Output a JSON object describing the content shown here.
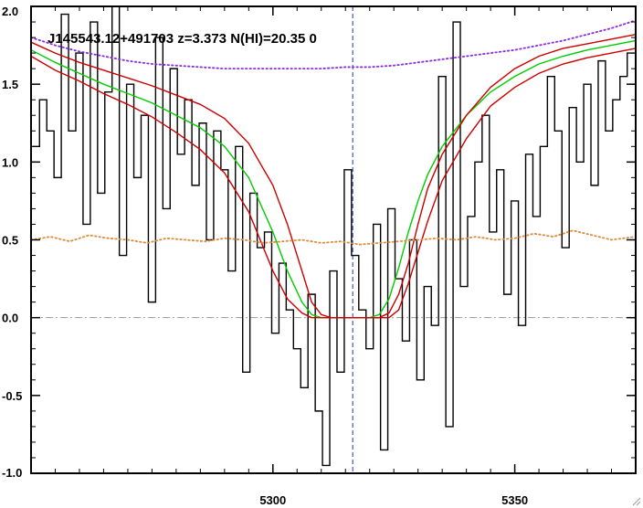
{
  "chart_data": {
    "type": "line",
    "title": "J145543.12+491703 z=3.373 N(HI)=20.35 0",
    "xlabel": "",
    "ylabel": "",
    "xlim": [
      5250,
      5375
    ],
    "ylim": [
      -1.0,
      2.0
    ],
    "x_ticks": [
      5300,
      5350
    ],
    "x_tick_labels": [
      "5300",
      "5350"
    ],
    "y_ticks": [
      -1.0,
      -0.5,
      0.0,
      0.5,
      1.0,
      1.5,
      2.0
    ],
    "y_tick_labels": [
      "-1.0",
      "-0.5",
      "0.0",
      "0.5",
      "1.0",
      "1.5",
      "2.0"
    ],
    "grid": false,
    "reference_line_y": 0.0,
    "marker_line_x": 5316.5,
    "colors": {
      "flux": "#000000",
      "model": "#00cc00",
      "model_bounds": "#cc0000",
      "continuum": "#8a2be2",
      "error": "#e08a3c",
      "zero_line": "#999999",
      "marker_line": "#2233cc"
    },
    "series": [
      {
        "style": "steps",
        "x": [
          5251.0,
          5252.5,
          5254.0,
          5255.5,
          5257.0,
          5258.5,
          5260.0,
          5261.5,
          5263.0,
          5264.5,
          5266.0,
          5267.5,
          5269.0,
          5270.5,
          5272.0,
          5273.5,
          5275.0,
          5276.5,
          5278.0,
          5279.5,
          5281.0,
          5282.5,
          5284.0,
          5285.5,
          5287.0,
          5288.5,
          5290.0,
          5291.5,
          5293.0,
          5294.5,
          5296.0,
          5297.5,
          5299.0,
          5300.5,
          5302.0,
          5303.5,
          5305.0,
          5306.5,
          5308.0,
          5309.5,
          5311.0,
          5312.5,
          5314.0,
          5315.5,
          5317.0,
          5318.5,
          5320.0,
          5321.5,
          5323.0,
          5324.5,
          5326.0,
          5327.5,
          5329.0,
          5330.5,
          5332.0,
          5333.5,
          5335.0,
          5336.5,
          5338.0,
          5339.5,
          5341.0,
          5342.5,
          5344.0,
          5345.5,
          5347.0,
          5348.5,
          5350.0,
          5351.5,
          5353.0,
          5354.5,
          5356.0,
          5357.5,
          5359.0,
          5360.5,
          5362.0,
          5363.5,
          5365.0,
          5366.5,
          5368.0,
          5369.5,
          5371.0,
          5372.5,
          5374.0
        ],
        "y": [
          1.1,
          1.4,
          1.2,
          0.9,
          1.95,
          1.2,
          1.7,
          0.6,
          1.9,
          0.8,
          1.45,
          2.0,
          0.4,
          1.5,
          0.9,
          1.3,
          0.1,
          1.8,
          0.7,
          1.6,
          1.05,
          1.4,
          0.85,
          1.25,
          0.5,
          1.2,
          0.95,
          0.3,
          1.1,
          -0.35,
          0.8,
          0.45,
          0.55,
          -0.1,
          0.35,
          0.05,
          -0.2,
          -0.45,
          0.15,
          -0.6,
          -0.95,
          0.3,
          -0.35,
          0.95,
          0.4,
          0.05,
          -0.2,
          0.6,
          -0.85,
          0.7,
          0.25,
          -0.15,
          0.5,
          -0.4,
          0.2,
          -0.05,
          1.55,
          -0.7,
          1.9,
          0.2,
          0.65,
          1.0,
          1.3,
          0.55,
          0.95,
          0.15,
          0.75,
          -0.05,
          1.05,
          0.65,
          1.1,
          1.55,
          1.2,
          0.45,
          1.35,
          1.0,
          1.5,
          0.85,
          1.65,
          1.2,
          1.4,
          1.55,
          1.7
        ]
      },
      {
        "style": "line",
        "x": [
          5250,
          5255,
          5260,
          5265,
          5270,
          5275,
          5280,
          5285,
          5290,
          5295,
          5300,
          5303,
          5306,
          5308,
          5310,
          5312,
          5314,
          5316,
          5318,
          5320,
          5322,
          5324,
          5326,
          5328,
          5330,
          5332,
          5335,
          5340,
          5345,
          5350,
          5355,
          5360,
          5365,
          5370,
          5375
        ],
        "y": [
          1.72,
          1.64,
          1.57,
          1.5,
          1.44,
          1.38,
          1.3,
          1.22,
          1.1,
          0.9,
          0.55,
          0.3,
          0.1,
          0.02,
          0.0,
          0.0,
          0.0,
          0.0,
          0.0,
          0.0,
          0.02,
          0.12,
          0.32,
          0.55,
          0.75,
          0.92,
          1.1,
          1.3,
          1.45,
          1.55,
          1.63,
          1.68,
          1.72,
          1.75,
          1.78
        ]
      },
      {
        "style": "line",
        "x": [
          5250,
          5255,
          5260,
          5265,
          5270,
          5275,
          5280,
          5285,
          5290,
          5295,
          5300,
          5303,
          5306,
          5308,
          5310,
          5312,
          5314,
          5316,
          5318,
          5320,
          5322,
          5324,
          5326,
          5328,
          5330,
          5332,
          5335,
          5340,
          5345,
          5350,
          5355,
          5360,
          5365,
          5370,
          5375
        ],
        "y": [
          1.77,
          1.7,
          1.64,
          1.59,
          1.54,
          1.49,
          1.43,
          1.37,
          1.28,
          1.12,
          0.85,
          0.6,
          0.3,
          0.1,
          0.02,
          0.0,
          0.0,
          0.0,
          0.0,
          0.0,
          0.0,
          0.03,
          0.15,
          0.35,
          0.6,
          0.83,
          1.05,
          1.3,
          1.48,
          1.6,
          1.68,
          1.73,
          1.76,
          1.79,
          1.82
        ]
      },
      {
        "style": "line",
        "x": [
          5250,
          5255,
          5260,
          5265,
          5270,
          5275,
          5280,
          5285,
          5290,
          5295,
          5300,
          5303,
          5306,
          5308,
          5310,
          5312,
          5314,
          5316,
          5318,
          5320,
          5322,
          5324,
          5326,
          5328,
          5330,
          5332,
          5335,
          5340,
          5345,
          5350,
          5355,
          5360,
          5365,
          5370,
          5375
        ],
        "y": [
          1.68,
          1.59,
          1.52,
          1.44,
          1.37,
          1.29,
          1.19,
          1.08,
          0.93,
          0.68,
          0.3,
          0.12,
          0.03,
          0.0,
          0.0,
          0.0,
          0.0,
          0.0,
          0.0,
          0.0,
          0.0,
          0.0,
          0.05,
          0.22,
          0.42,
          0.62,
          0.88,
          1.15,
          1.36,
          1.48,
          1.57,
          1.63,
          1.67,
          1.7,
          1.73
        ]
      },
      {
        "style": "dotted",
        "x": [
          5250,
          5255,
          5260,
          5265,
          5270,
          5275,
          5280,
          5285,
          5290,
          5295,
          5300,
          5305,
          5310,
          5315,
          5320,
          5325,
          5330,
          5335,
          5340,
          5345,
          5350,
          5355,
          5360,
          5365,
          5370,
          5375
        ],
        "y": [
          1.8,
          1.75,
          1.71,
          1.68,
          1.65,
          1.63,
          1.62,
          1.61,
          1.6,
          1.6,
          1.6,
          1.6,
          1.6,
          1.61,
          1.61,
          1.62,
          1.64,
          1.66,
          1.68,
          1.7,
          1.72,
          1.75,
          1.78,
          1.82,
          1.86,
          1.91
        ]
      },
      {
        "style": "dotted",
        "x": [
          5250,
          5254,
          5258,
          5262,
          5266,
          5270,
          5274,
          5278,
          5282,
          5286,
          5290,
          5294,
          5298,
          5302,
          5306,
          5310,
          5314,
          5318,
          5322,
          5326,
          5330,
          5334,
          5338,
          5342,
          5346,
          5350,
          5354,
          5358,
          5362,
          5366,
          5370,
          5375
        ],
        "y": [
          0.5,
          0.52,
          0.49,
          0.53,
          0.51,
          0.5,
          0.48,
          0.51,
          0.5,
          0.49,
          0.51,
          0.5,
          0.48,
          0.49,
          0.5,
          0.48,
          0.49,
          0.47,
          0.48,
          0.49,
          0.5,
          0.51,
          0.5,
          0.52,
          0.5,
          0.51,
          0.54,
          0.52,
          0.56,
          0.53,
          0.5,
          0.52
        ]
      }
    ]
  },
  "icons": {
    "corner": "resize-grip-icon"
  }
}
